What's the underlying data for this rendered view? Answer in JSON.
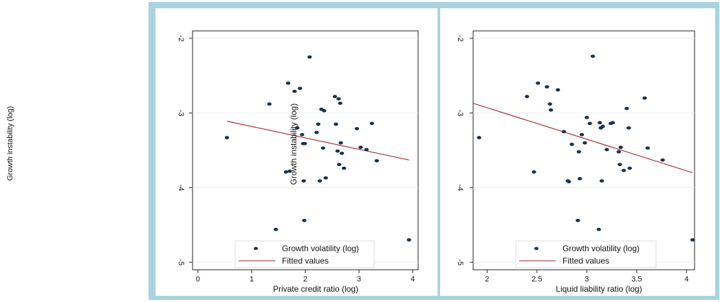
{
  "figure": {
    "outer_ylabel": "Growth instability (log)",
    "overlay_ylabel": "Growth instability (log)"
  },
  "colors": {
    "outer_frame": "#a9d3e0",
    "plot_background": "#ffffff",
    "points": "#17324d",
    "fitted_line": "#a02020",
    "gridline": "#e8eef0"
  },
  "chart_data": [
    {
      "type": "scatter",
      "title": "",
      "xlabel": "Private credit ratio (log)",
      "ylabel": "",
      "xlim": [
        -0.1,
        4.1
      ],
      "ylim": [
        -5.1,
        -1.9
      ],
      "x_ticks": [
        0,
        1,
        2,
        3,
        4
      ],
      "x_tick_labels": [
        "0",
        "1",
        "2",
        "3",
        "4"
      ],
      "y_ticks": [
        -2,
        -3,
        -4,
        -5
      ],
      "y_tick_labels": [
        "-2",
        "-3",
        "-4",
        "-5"
      ],
      "grid": true,
      "legend_position": "bottom-right",
      "series": [
        {
          "name": "Growth volatility (log)",
          "kind": "scatter",
          "x": [
            0.54,
            1.33,
            1.45,
            1.64,
            1.68,
            1.71,
            1.8,
            1.85,
            1.9,
            1.94,
            1.96,
            1.97,
            1.98,
            1.99,
            2.08,
            2.21,
            2.24,
            2.27,
            2.3,
            2.33,
            2.35,
            2.38,
            2.55,
            2.57,
            2.6,
            2.62,
            2.63,
            2.65,
            2.66,
            2.68,
            2.72,
            2.96,
            3.03,
            3.14,
            3.24,
            3.33,
            3.93
          ],
          "y": [
            -3.33,
            -2.88,
            -4.56,
            -3.79,
            -2.6,
            -3.78,
            -2.71,
            -3.2,
            -2.67,
            -3.29,
            -3.41,
            -3.91,
            -4.44,
            -3.41,
            -2.25,
            -3.26,
            -3.15,
            -3.91,
            -2.95,
            -3.47,
            -2.97,
            -3.87,
            -2.78,
            -3.15,
            -3.51,
            -2.81,
            -3.69,
            -2.87,
            -3.4,
            -3.54,
            -3.74,
            -3.21,
            -3.46,
            -3.49,
            -3.14,
            -3.64,
            -4.7
          ]
        },
        {
          "name": "Fitted values",
          "kind": "line",
          "x": [
            0.54,
            3.93
          ],
          "y": [
            -3.11,
            -3.63
          ]
        }
      ]
    },
    {
      "type": "scatter",
      "title": "",
      "xlabel": "Liquid liability ratio (log)",
      "ylabel": "",
      "xlim": [
        1.86,
        4.08
      ],
      "ylim": [
        -5.1,
        -1.9
      ],
      "x_ticks": [
        2,
        2.5,
        3,
        3.5,
        4
      ],
      "x_tick_labels": [
        "2",
        "2.5",
        "3",
        "3.5",
        "4"
      ],
      "y_ticks": [
        -2,
        -3,
        -4,
        -5
      ],
      "y_tick_labels": [
        "-2",
        "-3",
        "-4",
        "-5"
      ],
      "grid": true,
      "legend_position": "bottom-right",
      "series": [
        {
          "name": "Growth volatility (log)",
          "kind": "scatter",
          "x": [
            1.92,
            2.4,
            2.47,
            2.51,
            2.6,
            2.63,
            2.64,
            2.71,
            2.77,
            2.81,
            2.82,
            2.85,
            2.91,
            2.92,
            2.93,
            2.95,
            2.98,
            3,
            3.03,
            3.06,
            3.12,
            3.13,
            3.14,
            3.15,
            3.16,
            3.2,
            3.24,
            3.26,
            3.32,
            3.33,
            3.34,
            3.37,
            3.4,
            3.42,
            3.43,
            3.58,
            3.61,
            3.76,
            4.06
          ],
          "y": [
            -3.33,
            -2.78,
            -3.79,
            -2.6,
            -2.65,
            -2.88,
            -2.96,
            -2.69,
            -3.25,
            -3.91,
            -3.92,
            -3.42,
            -4.44,
            -3.52,
            -3.88,
            -3.29,
            -3.4,
            -3.06,
            -3.14,
            -2.24,
            -4.56,
            -3.13,
            -3.2,
            -3.91,
            -3.18,
            -3.49,
            -3.14,
            -3.13,
            -3.52,
            -3.69,
            -3.46,
            -3.77,
            -2.94,
            -3.2,
            -3.74,
            -2.8,
            -3.47,
            -3.63,
            -4.7
          ]
        },
        {
          "name": "Fitted values",
          "kind": "line",
          "x": [
            1.86,
            4.06
          ],
          "y": [
            -2.87,
            -3.8
          ]
        }
      ]
    }
  ]
}
